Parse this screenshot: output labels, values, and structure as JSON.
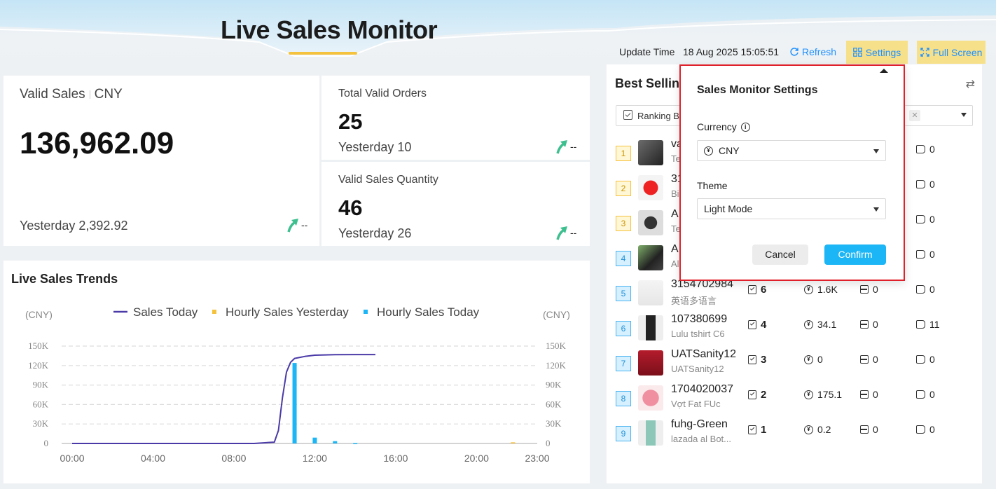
{
  "header": {
    "title": "Live Sales Monitor",
    "update_time_label": "Update Time",
    "update_time_value": "18 Aug 2025 15:05:51",
    "refresh_label": "Refresh",
    "settings_label": "Settings",
    "fullscreen_label": "Full Screen"
  },
  "valid_sales": {
    "label": "Valid Sales",
    "currency": "CNY",
    "value": "136,962.09",
    "yesterday": "Yesterday 2,392.92",
    "trend": "--"
  },
  "orders": {
    "label": "Total Valid Orders",
    "value": "25",
    "yesterday": "Yesterday 10",
    "trend": "--"
  },
  "quantity": {
    "label": "Valid Sales Quantity",
    "value": "46",
    "yesterday": "Yesterday 26",
    "trend": "--"
  },
  "trends": {
    "title": "Live Sales Trends",
    "unit_left": "(CNY)",
    "unit_right": "(CNY)"
  },
  "chart_data": {
    "type": "line",
    "title": "Live Sales Trends",
    "xlabel": "",
    "ylabel": "(CNY)",
    "y2label": "(CNY)",
    "ylim": [
      0,
      150000
    ],
    "y_ticks": [
      "150K",
      "120K",
      "90K",
      "60K",
      "30K",
      "0"
    ],
    "x_ticks": [
      "00:00",
      "04:00",
      "08:00",
      "12:00",
      "16:00",
      "20:00",
      "23:00"
    ],
    "legend_position": "top",
    "grid": true,
    "series": [
      {
        "name": "Sales Today",
        "kind": "line",
        "color": "#4a3aa7",
        "x": [
          0,
          5,
          9,
          10.0,
          10.2,
          10.4,
          10.6,
          10.8,
          11,
          11.5,
          12,
          13,
          14,
          15
        ],
        "y": [
          0,
          0,
          0,
          2000,
          20000,
          70000,
          110000,
          125000,
          131000,
          134000,
          136000,
          136700,
          136962,
          136962
        ]
      },
      {
        "name": "Hourly Sales Yesterday",
        "kind": "bar",
        "color": "#f5c23d",
        "x": [
          21.8
        ],
        "y": [
          1800
        ]
      },
      {
        "name": "Hourly Sales Today",
        "kind": "bar",
        "color": "#1cb5f5",
        "x": [
          11,
          12,
          13,
          14
        ],
        "y": [
          124000,
          9000,
          3500,
          500
        ]
      }
    ]
  },
  "best_selling": {
    "title": "Best Selling",
    "ranking_label": "Ranking B",
    "rows": [
      {
        "rank": "1",
        "name": "va",
        "sub": "Te",
        "orders": "",
        "sales": "",
        "stock": "",
        "tag": "0"
      },
      {
        "rank": "2",
        "name": "31",
        "sub": "Bi",
        "orders": "",
        "sales": "",
        "stock": "",
        "tag": "0"
      },
      {
        "rank": "3",
        "name": "A",
        "sub": "Te",
        "orders": "",
        "sales": "",
        "stock": "",
        "tag": "0"
      },
      {
        "rank": "4",
        "name": "A",
        "sub": "Al",
        "orders": "",
        "sales": "",
        "stock": "",
        "tag": "0"
      },
      {
        "rank": "5",
        "name": "3154702984",
        "sub": "英语多语言",
        "orders": "6",
        "sales": "1.6K",
        "stock": "0",
        "tag": "0"
      },
      {
        "rank": "6",
        "name": "107380699",
        "sub": "Lulu tshirt C6",
        "orders": "4",
        "sales": "34.1",
        "stock": "0",
        "tag": "11"
      },
      {
        "rank": "7",
        "name": "UATSanity12",
        "sub": "UATSanity12",
        "orders": "3",
        "sales": "0",
        "stock": "0",
        "tag": "0"
      },
      {
        "rank": "8",
        "name": "1704020037",
        "sub": "Vợt Fat FUc",
        "orders": "2",
        "sales": "175.1",
        "stock": "0",
        "tag": "0"
      },
      {
        "rank": "9",
        "name": "fuhg-Green",
        "sub": "lazada al Bot...",
        "orders": "1",
        "sales": "0.2",
        "stock": "0",
        "tag": "0"
      }
    ]
  },
  "settings_popup": {
    "title": "Sales Monitor Settings",
    "currency_label": "Currency",
    "currency_value": "CNY",
    "theme_label": "Theme",
    "theme_value": "Light Mode",
    "cancel_label": "Cancel",
    "confirm_label": "Confirm"
  }
}
